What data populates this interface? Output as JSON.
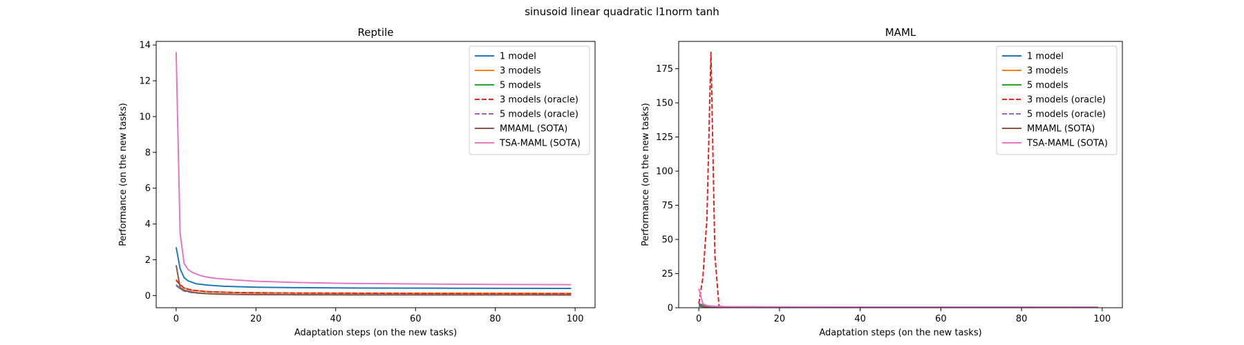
{
  "figure": {
    "suptitle": "sinusoid linear quadratic l1norm tanh"
  },
  "chart_data": [
    {
      "type": "line",
      "title": "Reptile",
      "xlabel": "Adaptation steps (on the new tasks)",
      "ylabel": "Performance (on the new tasks)",
      "xlim": [
        -5,
        105
      ],
      "ylim": [
        -0.68,
        14.2
      ],
      "xticks": [
        0,
        20,
        40,
        60,
        80,
        100
      ],
      "yticks": [
        0,
        2,
        4,
        6,
        8,
        10,
        12,
        14
      ],
      "legend_position": "top-right",
      "series": [
        {
          "name": "1 model",
          "color": "#1f77b4",
          "dash": "solid",
          "points": [
            [
              0,
              2.7
            ],
            [
              1,
              1.5
            ],
            [
              2,
              1.0
            ],
            [
              3,
              0.82
            ],
            [
              5,
              0.66
            ],
            [
              8,
              0.58
            ],
            [
              12,
              0.52
            ],
            [
              20,
              0.47
            ],
            [
              30,
              0.44
            ],
            [
              50,
              0.42
            ],
            [
              70,
              0.41
            ],
            [
              99,
              0.4
            ]
          ]
        },
        {
          "name": "3 models",
          "color": "#ff7f0e",
          "dash": "solid",
          "points": [
            [
              0,
              0.9
            ],
            [
              1,
              0.62
            ],
            [
              2,
              0.42
            ],
            [
              4,
              0.3
            ],
            [
              8,
              0.22
            ],
            [
              15,
              0.17
            ],
            [
              30,
              0.14
            ],
            [
              60,
              0.13
            ],
            [
              99,
              0.12
            ]
          ]
        },
        {
          "name": "5 models",
          "color": "#2ca02c",
          "dash": "solid",
          "points": [
            [
              0,
              0.6
            ],
            [
              1,
              0.4
            ],
            [
              2,
              0.28
            ],
            [
              4,
              0.18
            ],
            [
              8,
              0.11
            ],
            [
              15,
              0.07
            ],
            [
              30,
              0.05
            ],
            [
              60,
              0.04
            ],
            [
              99,
              0.04
            ]
          ]
        },
        {
          "name": "3 models (oracle)",
          "color": "#d62728",
          "dash": "dashed",
          "points": [
            [
              0,
              0.85
            ],
            [
              1,
              0.6
            ],
            [
              2,
              0.42
            ],
            [
              4,
              0.3
            ],
            [
              8,
              0.22
            ],
            [
              15,
              0.17
            ],
            [
              30,
              0.14
            ],
            [
              60,
              0.12
            ],
            [
              99,
              0.11
            ]
          ]
        },
        {
          "name": "5 models (oracle)",
          "color": "#9467bd",
          "dash": "dashed",
          "points": [
            [
              0,
              0.55
            ],
            [
              1,
              0.38
            ],
            [
              2,
              0.25
            ],
            [
              4,
              0.16
            ],
            [
              8,
              0.1
            ],
            [
              15,
              0.07
            ],
            [
              30,
              0.05
            ],
            [
              60,
              0.04
            ],
            [
              99,
              0.04
            ]
          ]
        },
        {
          "name": "MMAML (SOTA)",
          "color": "#8c564b",
          "dash": "solid",
          "points": [
            [
              0,
              1.7
            ],
            [
              1,
              0.45
            ],
            [
              2,
              0.3
            ],
            [
              4,
              0.2
            ],
            [
              6,
              0.13
            ],
            [
              10,
              0.08
            ],
            [
              20,
              0.05
            ],
            [
              40,
              0.04
            ],
            [
              99,
              0.03
            ]
          ]
        },
        {
          "name": "TSA-MAML (SOTA)",
          "color": "#e377c2",
          "dash": "solid",
          "points": [
            [
              0,
              13.6
            ],
            [
              1,
              3.5
            ],
            [
              2,
              1.8
            ],
            [
              3,
              1.45
            ],
            [
              4,
              1.3
            ],
            [
              6,
              1.12
            ],
            [
              8,
              1.02
            ],
            [
              10,
              0.96
            ],
            [
              15,
              0.87
            ],
            [
              20,
              0.8
            ],
            [
              30,
              0.73
            ],
            [
              40,
              0.69
            ],
            [
              60,
              0.65
            ],
            [
              80,
              0.62
            ],
            [
              99,
              0.61
            ]
          ]
        }
      ]
    },
    {
      "type": "line",
      "title": "MAML",
      "xlabel": "Adaptation steps (on the new tasks)",
      "ylabel": "Performance (on the new tasks)",
      "xlim": [
        -5,
        105
      ],
      "ylim": [
        0,
        195
      ],
      "xticks": [
        0,
        20,
        40,
        60,
        80,
        100
      ],
      "yticks": [
        0,
        25,
        50,
        75,
        100,
        125,
        150,
        175
      ],
      "legend_position": "top-right",
      "series": [
        {
          "name": "1 model",
          "color": "#1f77b4",
          "dash": "solid",
          "points": [
            [
              0,
              3
            ],
            [
              1,
              2
            ],
            [
              3,
              1.2
            ],
            [
              6,
              0.8
            ],
            [
              15,
              0.6
            ],
            [
              40,
              0.5
            ],
            [
              99,
              0.45
            ]
          ]
        },
        {
          "name": "3 models",
          "color": "#ff7f0e",
          "dash": "solid",
          "points": [
            [
              0,
              2
            ],
            [
              1,
              1.5
            ],
            [
              3,
              1
            ],
            [
              6,
              0.6
            ],
            [
              15,
              0.4
            ],
            [
              40,
              0.3
            ],
            [
              99,
              0.3
            ]
          ]
        },
        {
          "name": "5 models",
          "color": "#2ca02c",
          "dash": "solid",
          "points": [
            [
              0,
              1
            ],
            [
              1,
              0.8
            ],
            [
              3,
              0.5
            ],
            [
              6,
              0.3
            ],
            [
              15,
              0.2
            ],
            [
              40,
              0.15
            ],
            [
              99,
              0.1
            ]
          ]
        },
        {
          "name": "3 models (oracle)",
          "color": "#d62728",
          "dash": "dashed",
          "points": [
            [
              0,
              3
            ],
            [
              1,
              22
            ],
            [
              2,
              65
            ],
            [
              3,
              187
            ],
            [
              4,
              38
            ],
            [
              5,
              1
            ],
            [
              8,
              0.5
            ],
            [
              20,
              0.3
            ],
            [
              99,
              0.2
            ]
          ]
        },
        {
          "name": "5 models (oracle)",
          "color": "#9467bd",
          "dash": "dashed",
          "points": [
            [
              0,
              2
            ],
            [
              1,
              1.5
            ],
            [
              3,
              0.8
            ],
            [
              6,
              0.5
            ],
            [
              15,
              0.3
            ],
            [
              40,
              0.2
            ],
            [
              99,
              0.15
            ]
          ]
        },
        {
          "name": "MMAML (SOTA)",
          "color": "#8c564b",
          "dash": "solid",
          "points": [
            [
              0,
              2
            ],
            [
              1,
              1
            ],
            [
              3,
              0.6
            ],
            [
              6,
              0.4
            ],
            [
              15,
              0.3
            ],
            [
              40,
              0.2
            ],
            [
              99,
              0.15
            ]
          ]
        },
        {
          "name": "TSA-MAML (SOTA)",
          "color": "#e377c2",
          "dash": "solid",
          "points": [
            [
              0,
              14
            ],
            [
              1,
              3
            ],
            [
              2,
              1.5
            ],
            [
              3,
              1.1
            ],
            [
              5,
              0.9
            ],
            [
              10,
              0.7
            ],
            [
              20,
              0.55
            ],
            [
              40,
              0.45
            ],
            [
              99,
              0.4
            ]
          ]
        }
      ]
    }
  ]
}
